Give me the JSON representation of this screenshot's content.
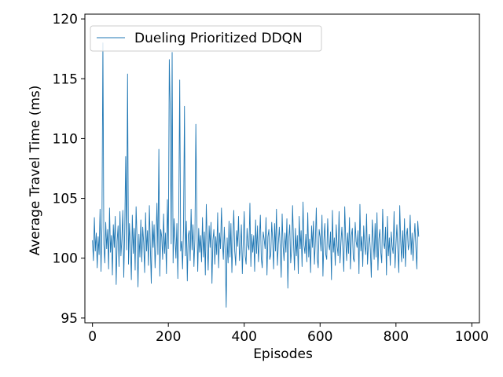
{
  "chart_data": {
    "type": "line",
    "title": "",
    "xlabel": "Episodes",
    "ylabel": "Average Travel Time (ms)",
    "xlim": [
      -20,
      1020
    ],
    "ylim": [
      94.6,
      120.4
    ],
    "xticks": [
      0,
      200,
      400,
      600,
      800,
      1000
    ],
    "yticks": [
      95,
      100,
      105,
      110,
      115,
      120
    ],
    "grid": false,
    "legend_position": "upper-left",
    "series": [
      {
        "name": "Dueling Prioritized DDQN",
        "color": "#1f77b4",
        "x_start": 0,
        "x_step": 2.5,
        "values": [
          101.5,
          99.8,
          103.4,
          100.6,
          102.1,
          99.2,
          101.8,
          100.3,
          104.1,
          98.9,
          102.6,
          118,
          101.2,
          99.6,
          103.0,
          100.8,
          102.4,
          99.1,
          104.2,
          100.5,
          101.9,
          98.6,
          102.8,
          100.9,
          103.5,
          97.8,
          101.4,
          102.7,
          99.3,
          103.9,
          100.2,
          101.6,
          104.0,
          98.4,
          102.2,
          108.5,
          100.7,
          115.4,
          99.5,
          102.9,
          101.1,
          98.2,
          103.6,
          100.4,
          102.5,
          99.0,
          104.3,
          101.7,
          97.6,
          102.0,
          100.1,
          103.2,
          99.7,
          102.6,
          101.3,
          98.8,
          103.8,
          100.6,
          102.3,
          99.4,
          104.4,
          101.0,
          97.9,
          103.1,
          100.9,
          102.8,
          99.2,
          101.5,
          104.6,
          100.3,
          109.1,
          98.5,
          102.4,
          101.8,
          99.9,
          103.7,
          100.4,
          102.1,
          98.7,
          104.9,
          100.8,
          116.6,
          112.4,
          101.2,
          117.2,
          99.6,
          103.3,
          101.7,
          100.0,
          102.9,
          98.3,
          103.9,
          114.9,
          100.6,
          101.4,
          99.1,
          102.6,
          112.7,
          100.2,
          103.1,
          98.1,
          101.9,
          102.3,
          99.8,
          104.1,
          100.7,
          102.8,
          99.3,
          101.6,
          111.2,
          103.6,
          98.9,
          102.5,
          100.5,
          101.9,
          99.7,
          103.4,
          100.1,
          102.2,
          98.6,
          104.5,
          101.3,
          99.0,
          102.7,
          100.9,
          103.0,
          97.9,
          101.5,
          102.4,
          99.5,
          101.8,
          100.3,
          103.8,
          99.2,
          102.1,
          100.8,
          104.2,
          101.4,
          99.9,
          102.6,
          100.4,
          95.9,
          101.7,
          99.6,
          103.1,
          100.1,
          102.9,
          98.8,
          101.6,
          104.0,
          100.6,
          99.4,
          102.3,
          101.0,
          103.5,
          99.8,
          100.9,
          102.8,
          98.7,
          101.3,
          103.9,
          100.2,
          99.5,
          102.5,
          101.1,
          100.7,
          104.6,
          99.3,
          102.0,
          100.5,
          101.9,
          98.9,
          103.2,
          100.4,
          102.7,
          99.7,
          101.4,
          103.6,
          100.0,
          99.2,
          102.2,
          101.6,
          100.8,
          103.4,
          98.6,
          101.8,
          102.4,
          99.9,
          100.3,
          103.0,
          101.5,
          99.1,
          102.9,
          100.6,
          104.1,
          99.4,
          101.2,
          102.6,
          100.9,
          98.4,
          103.7,
          101.0,
          99.8,
          102.1,
          100.5,
          103.3,
          97.5,
          101.7,
          102.8,
          99.6,
          100.7,
          104.4,
          101.3,
          99.0,
          102.5,
          100.2,
          101.9,
          98.7,
          103.5,
          100.8,
          102.3,
          99.3,
          104.7,
          101.1,
          100.4,
          102.0,
          99.7,
          103.8,
          100.1,
          101.6,
          98.8,
          102.7,
          100.9,
          103.1,
          99.5,
          101.4,
          104.2,
          100.0,
          99.2,
          102.4,
          101.8,
          100.6,
          103.6,
          98.5,
          101.5,
          102.9,
          100.3,
          99.9,
          103.3,
          101.2,
          100.7,
          102.2,
          98.2,
          104.0,
          100.5,
          101.7,
          99.4,
          102.8,
          101.0,
          100.2,
          103.9,
          99.6,
          101.3,
          102.6,
          100.8,
          98.9,
          104.3,
          101.6,
          99.8,
          102.1,
          100.4,
          103.4,
          99.1,
          101.9,
          102.5,
          100.0,
          99.7,
          103.0,
          101.4,
          100.9,
          102.3,
          98.7,
          104.5,
          100.6,
          101.8,
          99.3,
          102.7,
          101.1,
          100.3,
          103.7,
          99.5,
          101.2,
          102.0,
          100.7,
          98.4,
          103.2,
          101.5,
          99.9,
          102.9,
          100.1,
          103.8,
          99.0,
          101.6,
          102.4,
          100.5,
          99.6,
          104.1,
          101.3,
          100.8,
          102.6,
          98.6,
          103.5,
          100.2,
          101.7,
          99.4,
          102.2,
          101.0,
          100.4,
          103.9,
          99.2,
          101.1,
          102.8,
          100.6,
          98.8,
          104.4,
          101.4,
          99.7,
          102.3,
          100.0,
          103.3,
          99.3,
          101.9,
          102.5,
          100.7,
          101.2,
          103.6,
          100.3,
          102.1,
          99.8,
          101.5,
          102.9,
          100.9,
          99.1,
          103.1,
          101.8
        ]
      }
    ]
  }
}
